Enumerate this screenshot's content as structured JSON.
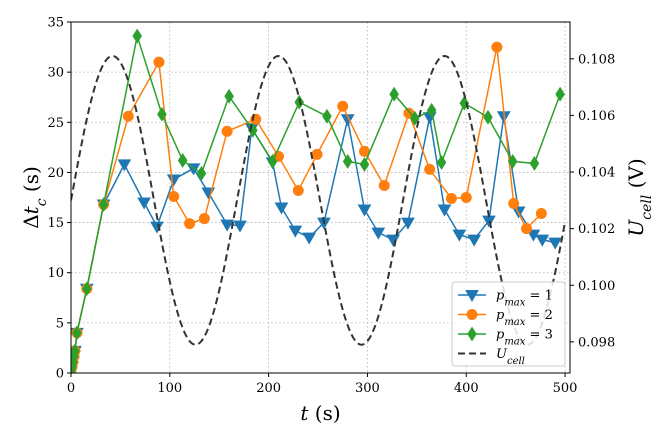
{
  "chart_data": {
    "type": "line",
    "title": "",
    "xlabel": "t (s)",
    "ylabel_left": "Δt_c (s)",
    "ylabel_right": "U_cell (V)",
    "xlim": [
      0,
      505
    ],
    "ylim_left": [
      0,
      35
    ],
    "ylim_right": [
      0.0969,
      0.1093
    ],
    "x_ticks": [
      0,
      100,
      200,
      300,
      400,
      500
    ],
    "x_tick_labels": [
      "0",
      "100",
      "200",
      "300",
      "400",
      "500"
    ],
    "y_left_ticks": [
      0,
      5,
      10,
      15,
      20,
      25,
      30,
      35
    ],
    "y_left_tick_labels": [
      "0",
      "5",
      "10",
      "15",
      "20",
      "25",
      "30",
      "35"
    ],
    "y_right_ticks": [
      0.098,
      0.1,
      0.102,
      0.104,
      0.106,
      0.108
    ],
    "y_right_tick_labels": [
      "0.098",
      "0.100",
      "0.102",
      "0.104",
      "0.106",
      "0.108"
    ],
    "grid": true,
    "legend_position": "bottom-right",
    "series": [
      {
        "name": "p_max = 1",
        "legend_main": "p",
        "legend_sub": "max",
        "legend_rest": " = 1",
        "color": "#1f77b4",
        "marker": "triangle-down",
        "axis": "left",
        "x": [
          0,
          1,
          2,
          3,
          4,
          6,
          16,
          33,
          54,
          74,
          87,
          104,
          124,
          139,
          158,
          171,
          183,
          204,
          213,
          227,
          241,
          256,
          280,
          297,
          311,
          326,
          341,
          363,
          378,
          393,
          408,
          423,
          438,
          453,
          468,
          477,
          490
        ],
        "y": [
          0.3,
          0.6,
          1.1,
          1.7,
          2.2,
          4.0,
          8.4,
          16.8,
          20.8,
          17.0,
          14.6,
          19.3,
          20.4,
          18.0,
          14.8,
          14.7,
          24.4,
          21.0,
          16.5,
          14.2,
          13.5,
          15.0,
          25.3,
          16.3,
          14.0,
          13.3,
          15.0,
          25.5,
          16.3,
          13.8,
          13.3,
          15.2,
          25.6,
          16.1,
          13.8,
          13.3,
          13.0
        ]
      },
      {
        "name": "p_max = 2",
        "legend_main": "p",
        "legend_sub": "max",
        "legend_rest": " = 2",
        "color": "#ff7f0e",
        "marker": "circle",
        "axis": "left",
        "x": [
          0,
          1,
          2,
          3,
          4,
          6,
          16,
          33,
          58,
          89,
          104,
          120,
          135,
          158,
          187,
          210,
          230,
          249,
          275,
          297,
          317,
          342,
          363,
          385,
          400,
          431,
          448,
          461,
          476
        ],
        "y": [
          0.3,
          0.6,
          1.1,
          1.7,
          2.2,
          4.0,
          8.4,
          16.8,
          25.6,
          31.0,
          17.6,
          14.9,
          15.4,
          24.1,
          25.3,
          21.6,
          18.2,
          21.8,
          26.6,
          22.1,
          18.7,
          25.9,
          20.3,
          17.4,
          17.5,
          32.5,
          16.9,
          14.4,
          15.9
        ]
      },
      {
        "name": "p_max = 3",
        "legend_main": "p",
        "legend_sub": "max",
        "legend_rest": " = 3",
        "color": "#2ca02c",
        "marker": "diamond",
        "axis": "left",
        "x": [
          0,
          1,
          2,
          3,
          4,
          6,
          16,
          33,
          67,
          92,
          113,
          132,
          160,
          184,
          204,
          231,
          259,
          280,
          297,
          327,
          348,
          365,
          375,
          398,
          422,
          447,
          469,
          495
        ],
        "y": [
          0.3,
          0.6,
          1.1,
          1.7,
          2.2,
          4.0,
          8.4,
          16.8,
          33.6,
          25.8,
          21.2,
          19.9,
          27.6,
          24.2,
          21.1,
          27.0,
          25.6,
          21.1,
          20.8,
          27.8,
          25.4,
          26.2,
          21.0,
          26.9,
          25.5,
          21.1,
          20.9,
          27.8
        ]
      },
      {
        "name": "U_cell",
        "legend_main": "U",
        "legend_sub": "cell",
        "legend_rest": "",
        "color": "#333333",
        "marker": "none",
        "dash": "dashed",
        "axis": "right",
        "function": "0.1030 - 0.0051*cos(2*pi*(t-126)/168)",
        "x_range": [
          0,
          500
        ]
      }
    ]
  }
}
